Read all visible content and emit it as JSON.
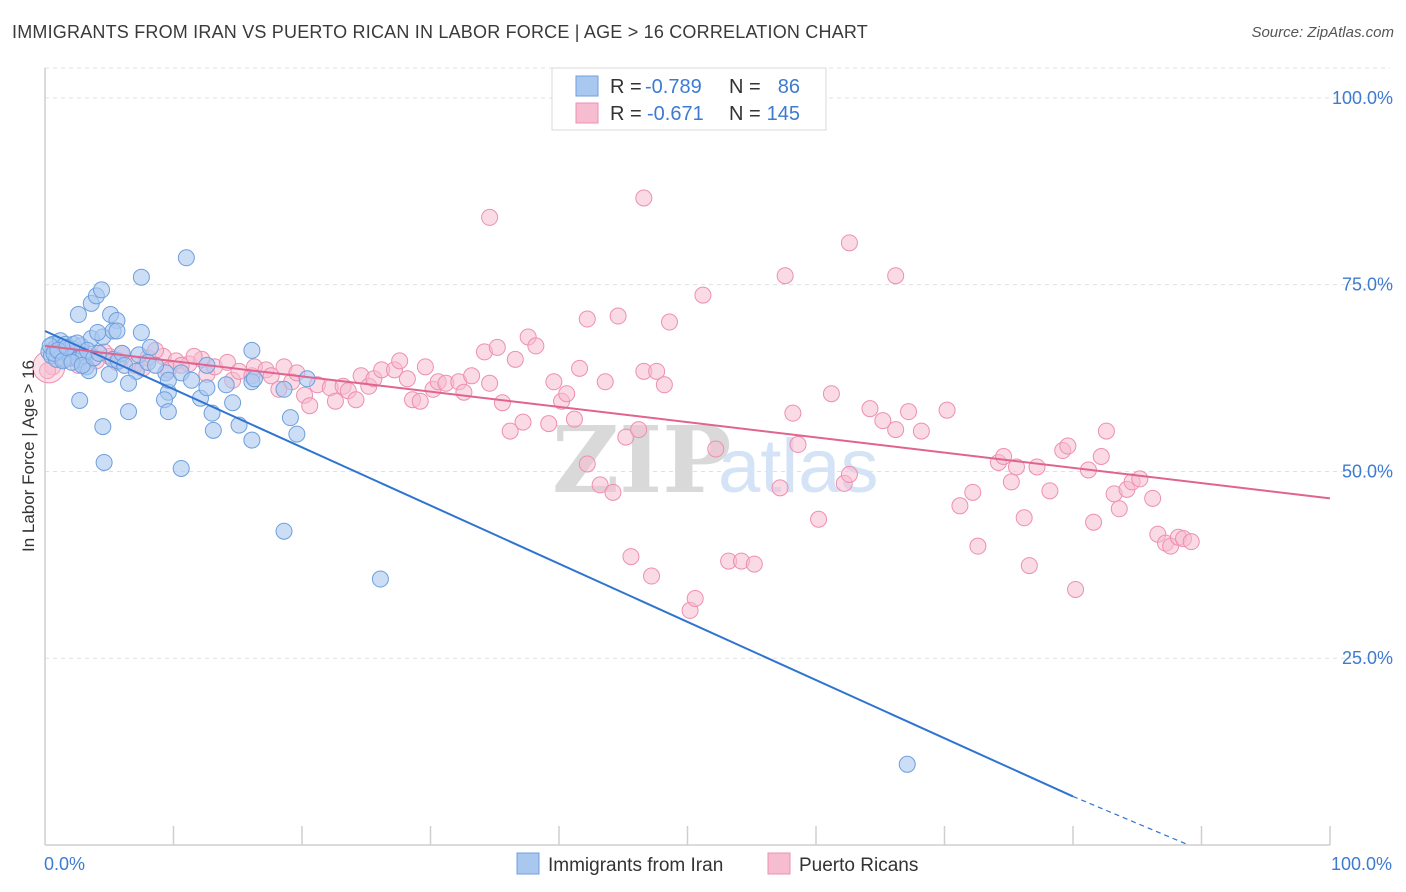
{
  "title": "IMMIGRANTS FROM IRAN VS PUERTO RICAN IN LABOR FORCE | AGE > 16 CORRELATION CHART",
  "source": "Source: ZipAtlas.com",
  "watermark": {
    "zip": "ZIP",
    "atlas": "atlas"
  },
  "colors": {
    "iran_fill": "#a9c8f0",
    "iran_stroke": "#6f9fdc",
    "iran_line": "#2f74d0",
    "pr_fill": "#f6bcd0",
    "pr_stroke": "#ee8fb0",
    "pr_line": "#e06390",
    "tick_text": "#3d7bd1",
    "grid": "#e0e0e0"
  },
  "legend": {
    "rows": [
      {
        "r_label": "R =",
        "r_value": "-0.789",
        "n_label": "N =",
        "n_value": "86"
      },
      {
        "r_label": "R =",
        "r_value": "-0.671",
        "n_label": "N =",
        "n_value": "145"
      }
    ]
  },
  "bottom_legend": [
    "Immigrants from Iran",
    "Puerto Ricans"
  ],
  "chart_data": {
    "type": "scatter",
    "title": "IMMIGRANTS FROM IRAN VS PUERTO RICAN IN LABOR FORCE | AGE > 16 CORRELATION CHART",
    "xlabel": "",
    "ylabel": "In Labor Force | Age > 16",
    "xlim": [
      0,
      100
    ],
    "ylim": [
      0,
      104
    ],
    "x_tick_labels": [
      "0.0%",
      "100.0%"
    ],
    "y_ticks": [
      25,
      50,
      75,
      100
    ],
    "y_tick_labels": [
      "25.0%",
      "50.0%",
      "75.0%",
      "100.0%"
    ],
    "grid": true,
    "legend_position": "top-center",
    "series": [
      {
        "name": "Immigrants from Iran",
        "color": "#a9c8f0",
        "trend": {
          "x": [
            0,
            80
          ],
          "y": [
            68.8,
            6.5
          ],
          "dashed_to": [
            89,
            0
          ]
        },
        "points": [
          [
            0.3,
            66
          ],
          [
            0.5,
            65.5
          ],
          [
            0.6,
            67
          ],
          [
            0.8,
            66.5
          ],
          [
            0.9,
            65
          ],
          [
            1.1,
            66
          ],
          [
            1.2,
            67.5
          ],
          [
            1.3,
            66
          ],
          [
            1.5,
            65
          ],
          [
            1.6,
            67
          ],
          [
            1.8,
            66.3
          ],
          [
            2.0,
            65.2
          ],
          [
            2.2,
            67
          ],
          [
            2.4,
            66
          ],
          [
            2.6,
            65
          ],
          [
            2.8,
            66.8
          ],
          [
            3.0,
            65.5
          ],
          [
            3.2,
            64
          ],
          [
            3.4,
            63.5
          ],
          [
            3.6,
            67.8
          ],
          [
            0.4,
            66.8
          ],
          [
            0.7,
            65.8
          ],
          [
            1.0,
            66.2
          ],
          [
            1.4,
            64.8
          ],
          [
            1.7,
            66.6
          ],
          [
            2.1,
            64.6
          ],
          [
            2.5,
            67.2
          ],
          [
            2.9,
            64.2
          ],
          [
            3.3,
            66.2
          ],
          [
            3.8,
            65.2
          ],
          [
            4.2,
            65.8
          ],
          [
            4.5,
            68
          ],
          [
            5.0,
            63
          ],
          [
            5.3,
            65
          ],
          [
            5.7,
            64.8
          ],
          [
            6.0,
            65.8
          ],
          [
            6.2,
            64.2
          ],
          [
            2.6,
            71
          ],
          [
            3.6,
            72.5
          ],
          [
            4.0,
            73.5
          ],
          [
            4.4,
            74.3
          ],
          [
            5.1,
            71
          ],
          [
            5.6,
            70.2
          ],
          [
            5.3,
            68.8
          ],
          [
            4.1,
            68.6
          ],
          [
            5.6,
            68.8
          ],
          [
            7.5,
            68.6
          ],
          [
            7.3,
            65.6
          ],
          [
            7.1,
            63.4
          ],
          [
            8.2,
            66.6
          ],
          [
            8.0,
            64.6
          ],
          [
            9.4,
            63.2
          ],
          [
            9.6,
            60.6
          ],
          [
            9.3,
            59.6
          ],
          [
            9.6,
            62.2
          ],
          [
            8.6,
            64.2
          ],
          [
            10.6,
            63.2
          ],
          [
            11.4,
            62.2
          ],
          [
            12.1,
            59.8
          ],
          [
            12.6,
            64.2
          ],
          [
            13.0,
            57.8
          ],
          [
            12.6,
            61.2
          ],
          [
            14.1,
            61.6
          ],
          [
            14.6,
            59.2
          ],
          [
            16.1,
            62
          ],
          [
            15.1,
            56.2
          ],
          [
            16.1,
            54.2
          ],
          [
            16.1,
            66.2
          ],
          [
            16.3,
            62.4
          ],
          [
            18.6,
            61
          ],
          [
            19.1,
            57.2
          ],
          [
            19.6,
            55
          ],
          [
            20.4,
            62.4
          ],
          [
            10.6,
            50.4
          ],
          [
            4.6,
            51.2
          ],
          [
            7.5,
            76
          ],
          [
            11.0,
            78.6
          ],
          [
            18.6,
            42
          ],
          [
            6.5,
            58
          ],
          [
            4.5,
            56
          ],
          [
            2.7,
            59.5
          ],
          [
            6.5,
            61.8
          ],
          [
            26.1,
            35.6
          ],
          [
            67.1,
            10.8
          ],
          [
            13.1,
            55.5
          ],
          [
            9.6,
            58
          ]
        ]
      },
      {
        "name": "Puerto Ricans",
        "color": "#f6bcd0",
        "trend": {
          "x": [
            0,
            100
          ],
          "y": [
            66.8,
            46.4
          ]
        },
        "points": [
          [
            0.6,
            64
          ],
          [
            1.2,
            66
          ],
          [
            1.6,
            65
          ],
          [
            2.2,
            66.4
          ],
          [
            3.2,
            65.6
          ],
          [
            4.0,
            64.8
          ],
          [
            5.0,
            65.4
          ],
          [
            6.0,
            65.8
          ],
          [
            7.0,
            64.2
          ],
          [
            8.0,
            65.2
          ],
          [
            9.2,
            65.4
          ],
          [
            9.6,
            63.6
          ],
          [
            10.2,
            64.8
          ],
          [
            11.2,
            64.4
          ],
          [
            12.2,
            65
          ],
          [
            12.6,
            63
          ],
          [
            13.2,
            64
          ],
          [
            14.2,
            64.6
          ],
          [
            14.6,
            62.2
          ],
          [
            15.1,
            63.4
          ],
          [
            16.1,
            62.8
          ],
          [
            16.3,
            64
          ],
          [
            17.2,
            63.6
          ],
          [
            17.6,
            62.8
          ],
          [
            18.2,
            61
          ],
          [
            18.6,
            64
          ],
          [
            19.2,
            62
          ],
          [
            19.6,
            63.2
          ],
          [
            20.2,
            60.2
          ],
          [
            20.6,
            58.8
          ],
          [
            21.2,
            61.6
          ],
          [
            22.2,
            61.2
          ],
          [
            22.6,
            59.4
          ],
          [
            23.2,
            61.4
          ],
          [
            23.6,
            60.8
          ],
          [
            24.2,
            59.6
          ],
          [
            24.6,
            62.8
          ],
          [
            25.2,
            61.4
          ],
          [
            25.6,
            62.4
          ],
          [
            26.2,
            63.6
          ],
          [
            27.2,
            63.6
          ],
          [
            27.6,
            64.8
          ],
          [
            28.2,
            62.4
          ],
          [
            28.6,
            59.6
          ],
          [
            29.2,
            59.4
          ],
          [
            29.6,
            64
          ],
          [
            30.2,
            61
          ],
          [
            30.6,
            62
          ],
          [
            31.2,
            61.8
          ],
          [
            32.2,
            62
          ],
          [
            32.6,
            60.6
          ],
          [
            33.2,
            62.8
          ],
          [
            34.2,
            66
          ],
          [
            34.6,
            61.8
          ],
          [
            35.2,
            66.6
          ],
          [
            35.6,
            59.2
          ],
          [
            36.2,
            55.4
          ],
          [
            36.6,
            65
          ],
          [
            37.2,
            56.6
          ],
          [
            37.6,
            68
          ],
          [
            38.2,
            66.8
          ],
          [
            39.2,
            56.4
          ],
          [
            39.6,
            62
          ],
          [
            40.2,
            59.4
          ],
          [
            40.6,
            60.4
          ],
          [
            41.2,
            57
          ],
          [
            41.6,
            63.8
          ],
          [
            42.2,
            51
          ],
          [
            43.2,
            48.2
          ],
          [
            43.6,
            62
          ],
          [
            44.2,
            47.2
          ],
          [
            44.6,
            70.8
          ],
          [
            45.2,
            54.6
          ],
          [
            45.6,
            38.6
          ],
          [
            46.2,
            55.6
          ],
          [
            46.6,
            63.4
          ],
          [
            47.2,
            36
          ],
          [
            47.6,
            63.4
          ],
          [
            48.2,
            61.6
          ],
          [
            50.2,
            31.4
          ],
          [
            50.6,
            33
          ],
          [
            51.2,
            73.6
          ],
          [
            52.2,
            53
          ],
          [
            53.2,
            38
          ],
          [
            54.2,
            38
          ],
          [
            55.2,
            37.6
          ],
          [
            57.2,
            47.8
          ],
          [
            57.6,
            76.2
          ],
          [
            58.2,
            57.8
          ],
          [
            58.6,
            53.6
          ],
          [
            60.2,
            43.6
          ],
          [
            61.2,
            60.4
          ],
          [
            62.2,
            48.4
          ],
          [
            62.6,
            49.6
          ],
          [
            64.2,
            58.4
          ],
          [
            65.2,
            56.8
          ],
          [
            66.2,
            55.6
          ],
          [
            67.2,
            58
          ],
          [
            68.2,
            55.4
          ],
          [
            70.2,
            58.2
          ],
          [
            71.2,
            45.4
          ],
          [
            72.2,
            47.2
          ],
          [
            72.6,
            40
          ],
          [
            74.2,
            51.2
          ],
          [
            74.6,
            52
          ],
          [
            75.2,
            48.6
          ],
          [
            75.6,
            50.6
          ],
          [
            76.2,
            43.8
          ],
          [
            76.6,
            37.4
          ],
          [
            77.2,
            50.6
          ],
          [
            78.2,
            47.4
          ],
          [
            79.2,
            52.8
          ],
          [
            79.6,
            53.4
          ],
          [
            80.2,
            34.2
          ],
          [
            81.2,
            50.2
          ],
          [
            81.6,
            43.2
          ],
          [
            82.2,
            52
          ],
          [
            82.6,
            55.4
          ],
          [
            83.2,
            47
          ],
          [
            83.6,
            45
          ],
          [
            84.2,
            47.6
          ],
          [
            84.6,
            48.6
          ],
          [
            85.2,
            49
          ],
          [
            86.2,
            46.4
          ],
          [
            86.6,
            41.6
          ],
          [
            87.2,
            40.4
          ],
          [
            87.6,
            40
          ],
          [
            88.2,
            41.2
          ],
          [
            88.6,
            41
          ],
          [
            89.2,
            40.6
          ],
          [
            34.6,
            84
          ],
          [
            46.6,
            86.6
          ],
          [
            62.6,
            80.6
          ],
          [
            66.2,
            76.2
          ],
          [
            48.6,
            70
          ],
          [
            42.2,
            70.4
          ],
          [
            0.2,
            63.5
          ],
          [
            1.4,
            65
          ],
          [
            2.6,
            64.2
          ],
          [
            4.6,
            66
          ],
          [
            5.6,
            64.6
          ],
          [
            7.6,
            63.8
          ],
          [
            8.6,
            66.2
          ],
          [
            10.6,
            64.2
          ],
          [
            11.6,
            65.4
          ]
        ]
      }
    ]
  }
}
